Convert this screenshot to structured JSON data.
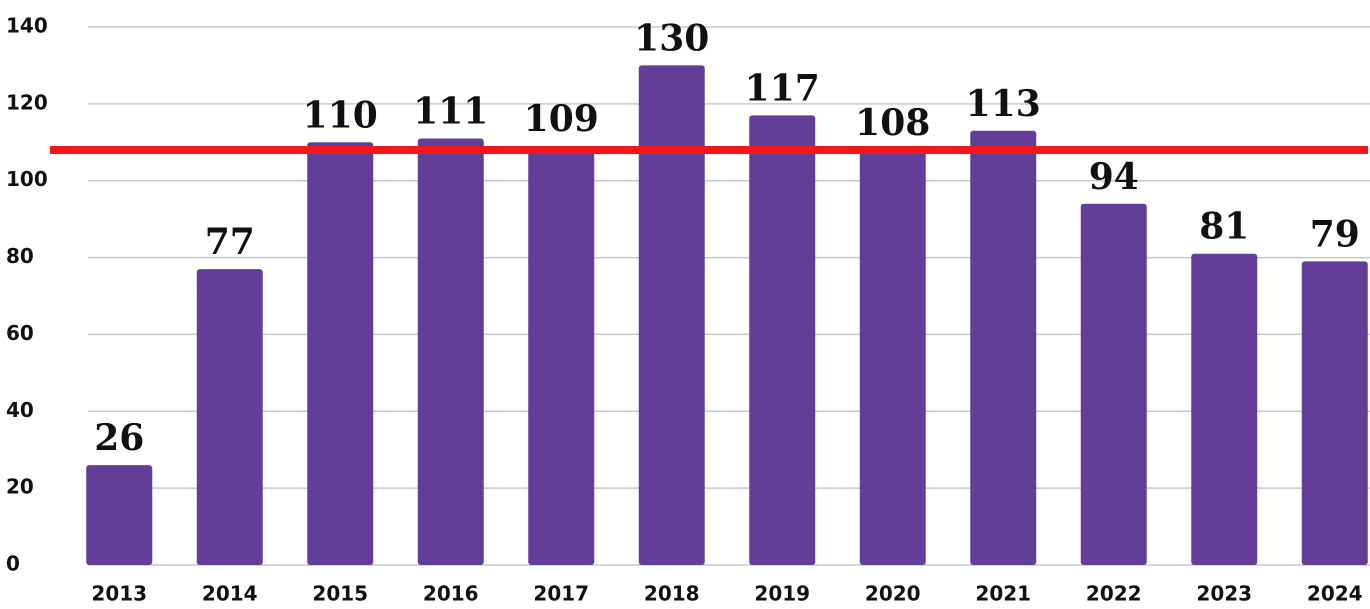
{
  "chart_data": {
    "type": "bar",
    "categories": [
      "2013",
      "2014",
      "2015",
      "2016",
      "2017",
      "2018",
      "2019",
      "2020",
      "2021",
      "2022",
      "2023",
      "2024"
    ],
    "values": [
      26,
      77,
      110,
      111,
      109,
      130,
      117,
      108,
      113,
      94,
      81,
      79
    ],
    "color": "#633e98",
    "ylim": [
      0,
      140
    ],
    "yticks": [
      0,
      20,
      40,
      60,
      80,
      100,
      120,
      140
    ],
    "grid": true,
    "reference_line": {
      "value": 108,
      "color": "#f01818"
    }
  }
}
